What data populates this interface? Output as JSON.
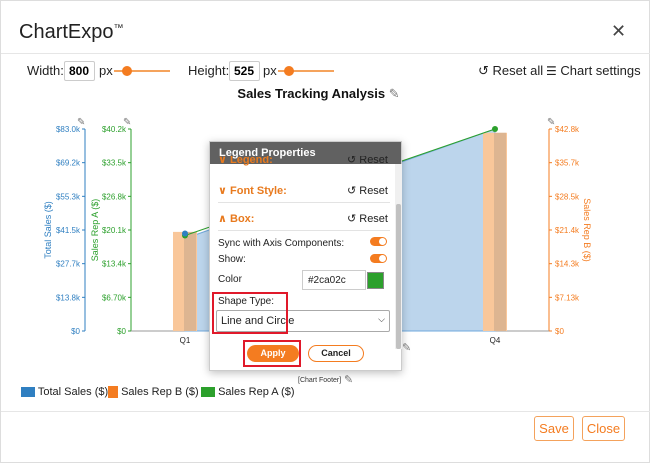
{
  "app": {
    "brand": "ChartExpo",
    "tm": "™"
  },
  "controls": {
    "width_label": "Width:",
    "width_value": "800",
    "width_unit": "px",
    "height_label": "Height:",
    "height_value": "525",
    "height_unit": "px",
    "reset_all": "Reset all",
    "chart_settings": "Chart settings"
  },
  "chart": {
    "title": "Sales Tracking Analysis",
    "footer": "[Chart Footer]"
  },
  "chart_data": {
    "type": "area",
    "title": "Sales Tracking Analysis",
    "categories": [
      "Q1",
      "Q4"
    ],
    "axes": {
      "total_sales": {
        "label": "Total Sales ($)",
        "ticks": [
          "$83.0k",
          "$69.2k",
          "$55.3k",
          "$41.5k",
          "$27.7k",
          "$13.8k",
          "$0"
        ],
        "color": "#2f7fc1"
      },
      "sales_rep_a": {
        "label": "Sales Rep A ($)",
        "ticks": [
          "$40.2k",
          "$33.5k",
          "$26.8k",
          "$20.1k",
          "$13.4k",
          "$6.70k",
          "$0"
        ],
        "color": "#2ca02c"
      },
      "sales_rep_b": {
        "label": "Sales Rep B ($)",
        "ticks": [
          "$42.8k",
          "$35.7k",
          "$28.5k",
          "$21.4k",
          "$14.3k",
          "$7.13k",
          "$0"
        ],
        "color": "#f47c20"
      }
    },
    "series": [
      {
        "name": "Total Sales ($)",
        "values": [
          38000,
          83000
        ],
        "color": "#9fc5e8"
      },
      {
        "name": "Sales Rep B ($)",
        "values": [
          21000,
          42000
        ],
        "color": "#f9c79a"
      },
      {
        "name": "Sales Rep A ($)",
        "values": [
          19000,
          40200
        ],
        "color": "#2ca02c"
      }
    ]
  },
  "legend": [
    "Total Sales ($)",
    "Sales Rep B ($)",
    "Sales Rep A ($)"
  ],
  "popup": {
    "title": "Legend Properties",
    "legend_section": "Legend:",
    "font_style": "Font Style:",
    "box": "Box:",
    "reset": "Reset",
    "sync_label": "Sync with Axis Components:",
    "show_label": "Show:",
    "color_label": "Color",
    "color_value": "#2ca02c",
    "shape_type_label": "Shape Type:",
    "shape_type_value": "Line and Circle",
    "apply": "Apply",
    "cancel": "Cancel"
  },
  "footer_buttons": {
    "save": "Save",
    "close": "Close"
  }
}
